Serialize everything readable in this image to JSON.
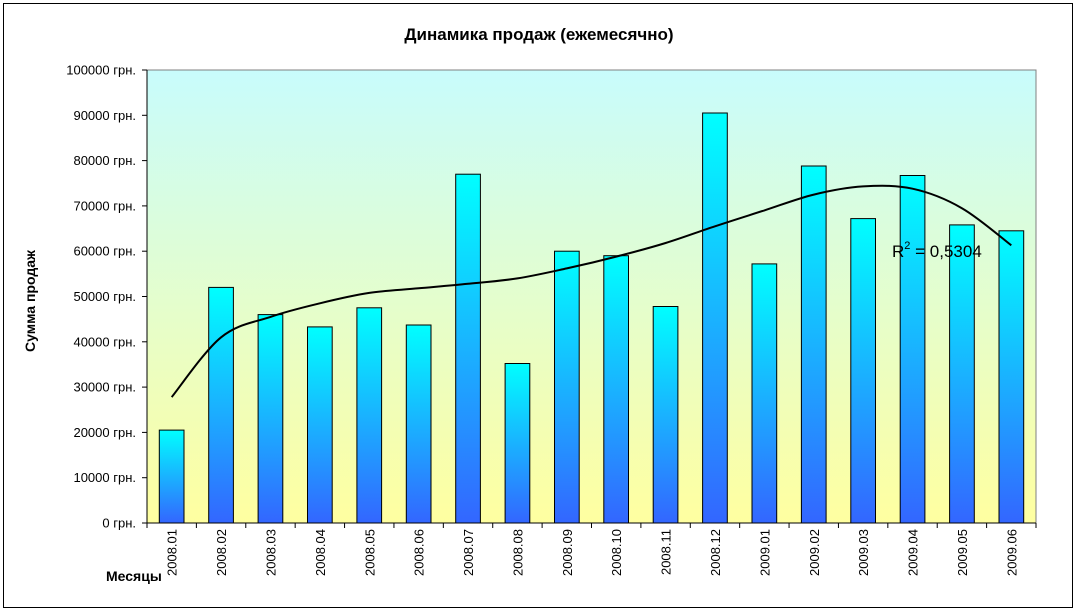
{
  "chart_data": {
    "type": "bar",
    "title": "Динамика продаж (ежемесячно)",
    "xlabel": "Месяцы",
    "ylabel": "Сумма продаж",
    "ylim": [
      0,
      100000
    ],
    "ytick_values": [
      0,
      10000,
      20000,
      30000,
      40000,
      50000,
      60000,
      70000,
      80000,
      90000,
      100000
    ],
    "ytick_labels": [
      "0 грн.",
      "10000 грн.",
      "20000 грн.",
      "30000 грн.",
      "40000 грн.",
      "50000 грн.",
      "60000 грн.",
      "70000 грн.",
      "80000 грн.",
      "90000 грн.",
      "100000 грн."
    ],
    "categories": [
      "2008.01",
      "2008.02",
      "2008.03",
      "2008.04",
      "2008.05",
      "2008.06",
      "2008.07",
      "2008.08",
      "2008.09",
      "2008.10",
      "2008.11",
      "2008.12",
      "2009.01",
      "2009.02",
      "2009.03",
      "2009.04",
      "2009.05",
      "2009.06"
    ],
    "values": [
      20500,
      52000,
      46000,
      43300,
      47500,
      43700,
      77000,
      35200,
      60000,
      59000,
      47800,
      90500,
      57200,
      78800,
      67200,
      76700,
      65800,
      64500
    ],
    "trendline": {
      "type": "polynomial",
      "label_prefix": "R",
      "label_sup": "2",
      "label_suffix": " = 0,5304",
      "values": [
        27800,
        41000,
        45500,
        48500,
        50800,
        51800,
        52800,
        54000,
        56200,
        58800,
        61800,
        65500,
        69000,
        72500,
        74300,
        73800,
        69500,
        61300
      ]
    },
    "grid": false,
    "legend": "none",
    "colors": {
      "bar_top": "#00ffff",
      "bar_bottom": "#3366ff",
      "plot_bg_top": "#c8fcfc",
      "plot_bg_bottom": "#ffffa0",
      "trendline": "#000000"
    }
  }
}
